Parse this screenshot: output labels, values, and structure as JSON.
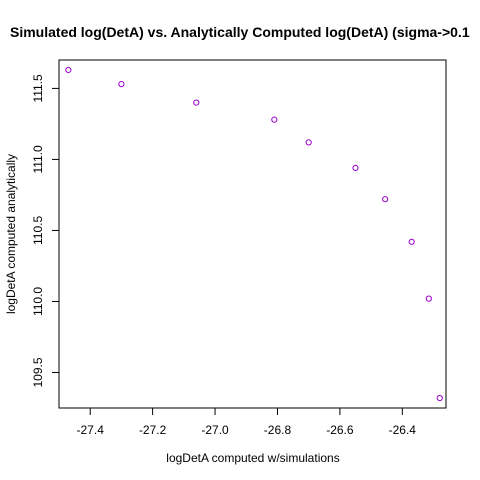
{
  "chart_data": {
    "type": "scatter",
    "title": "Simulated log(DetA) vs. Analytically Computed log(DetA) (sigma->0.1",
    "xlabel": "logDetA computed w/simulations",
    "ylabel": "logDetA computed analytically",
    "xlim": [
      -27.5,
      -26.26
    ],
    "ylim": [
      109.25,
      111.7
    ],
    "xticks": [
      -27.4,
      -27.2,
      -27.0,
      -26.8,
      -26.6,
      -26.4
    ],
    "xtick_labels": [
      "-27.4",
      "-27.2",
      "-27.0",
      "-26.8",
      "-26.6",
      "-26.4"
    ],
    "yticks": [
      109.5,
      110.0,
      110.5,
      111.0,
      111.5
    ],
    "ytick_labels": [
      "109.5",
      "110.0",
      "110.5",
      "111.0",
      "111.5"
    ],
    "marker_color": "#9900cc",
    "x": [
      -27.47,
      -27.3,
      -27.06,
      -26.81,
      -26.7,
      -26.55,
      -26.455,
      -26.37,
      -26.315,
      -26.28
    ],
    "y": [
      111.63,
      111.53,
      111.4,
      111.28,
      111.12,
      110.94,
      110.72,
      110.42,
      110.02,
      109.32
    ]
  }
}
